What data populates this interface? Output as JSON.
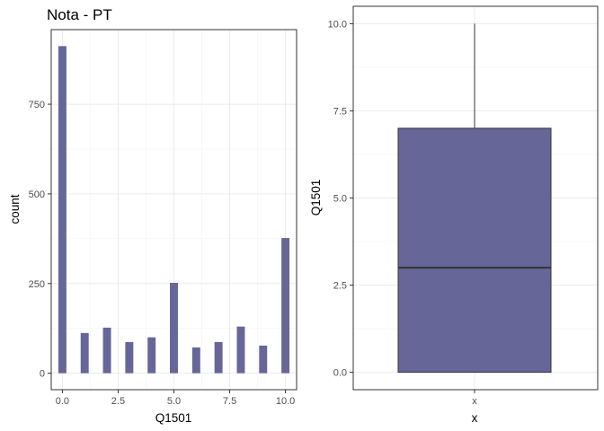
{
  "chart_data": [
    {
      "type": "bar",
      "title": "Nota - PT",
      "xlabel": "Q1501",
      "ylabel": "count",
      "x": [
        0,
        1,
        2,
        3,
        4,
        5,
        6,
        7,
        8,
        9,
        10
      ],
      "values": [
        912,
        112,
        127,
        87,
        100,
        252,
        72,
        87,
        130,
        77,
        377
      ],
      "x_ticks": [
        0,
        2.5,
        5,
        7.5,
        10
      ],
      "x_tick_labels": [
        "0.0",
        "2.5",
        "5.0",
        "7.5",
        "10.0"
      ],
      "y_ticks": [
        0,
        250,
        500,
        750
      ],
      "y_tick_labels": [
        "0",
        "250",
        "500",
        "750"
      ],
      "xlim": [
        -0.5,
        10.5
      ],
      "ylim": [
        -46,
        958
      ],
      "grid": true,
      "bar_color": "#666699"
    },
    {
      "type": "boxplot",
      "title": "",
      "xlabel": "x",
      "ylabel": "Q1501",
      "min": 0,
      "q1": 0,
      "median": 3,
      "q3": 7,
      "max": 10,
      "y_ticks": [
        0,
        2.5,
        5,
        7.5,
        10
      ],
      "y_tick_labels": [
        "0.0",
        "2.5",
        "5.0",
        "7.5",
        "10.0"
      ],
      "ylim": [
        -0.5,
        10.5
      ],
      "grid": true,
      "box_color": "#666699"
    }
  ]
}
